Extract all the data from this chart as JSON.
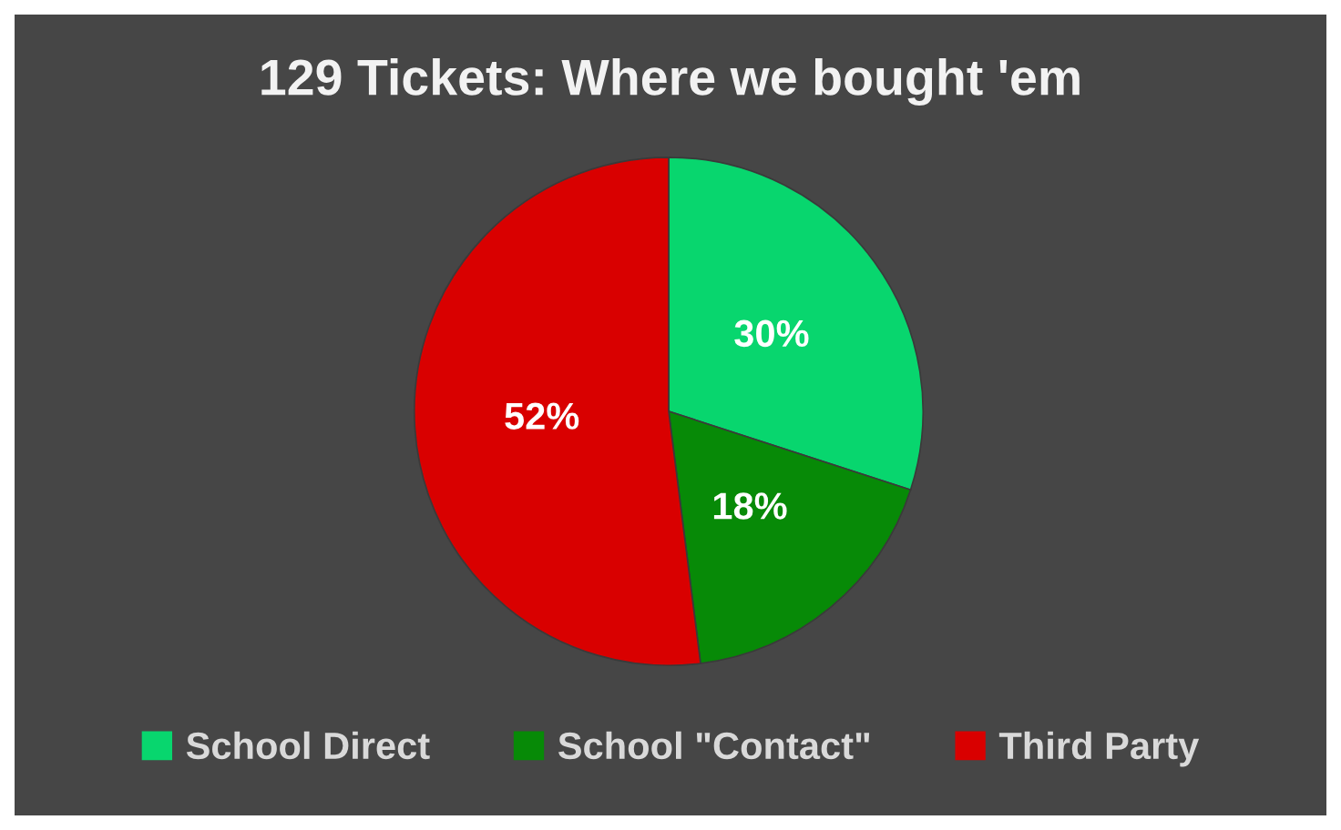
{
  "chart_data": {
    "type": "pie",
    "title": "129 Tickets: Where we bought 'em",
    "categories": [
      "School Direct",
      "School \"Contact\"",
      "Third Party"
    ],
    "values": [
      30,
      18,
      52
    ],
    "colors": [
      "#08d66e",
      "#078a07",
      "#d90000"
    ],
    "value_labels": [
      "30%",
      "18%",
      "52%"
    ],
    "legend": "bottom"
  }
}
